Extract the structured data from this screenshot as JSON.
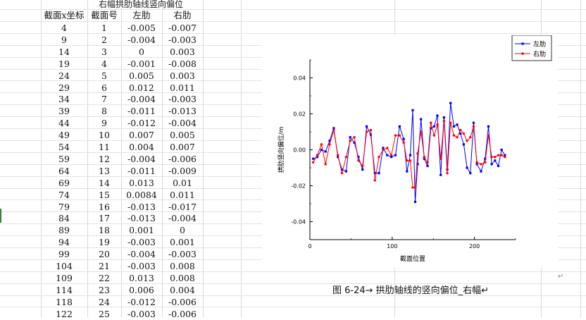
{
  "table": {
    "title": "右幅拱肋轴线竖向偏位",
    "headers": [
      "截面x坐标",
      "截面号",
      "左肋",
      "右肋"
    ],
    "rows": [
      [
        "4",
        "1",
        "-0.005",
        "-0.007"
      ],
      [
        "9",
        "2",
        "-0.004",
        "-0.003"
      ],
      [
        "14",
        "3",
        "0",
        "0.003"
      ],
      [
        "19",
        "4",
        "-0.001",
        "-0.008"
      ],
      [
        "24",
        "5",
        "0.005",
        "0.003"
      ],
      [
        "29",
        "6",
        "0.012",
        "0.011"
      ],
      [
        "34",
        "7",
        "-0.004",
        "-0.003"
      ],
      [
        "39",
        "8",
        "-0.011",
        "-0.013"
      ],
      [
        "44",
        "9",
        "-0.012",
        "-0.004"
      ],
      [
        "49",
        "10",
        "0.007",
        "0.005"
      ],
      [
        "54",
        "11",
        "0.004",
        "0.007"
      ],
      [
        "59",
        "12",
        "-0.004",
        "-0.006"
      ],
      [
        "64",
        "13",
        "-0.011",
        "-0.009"
      ],
      [
        "69",
        "14",
        "0.013",
        "0.01"
      ],
      [
        "74",
        "15",
        "0.0084",
        "0.011"
      ],
      [
        "79",
        "16",
        "-0.013",
        "-0.017"
      ],
      [
        "84",
        "17",
        "-0.013",
        "-0.004"
      ],
      [
        "89",
        "18",
        "0.001",
        "0"
      ],
      [
        "94",
        "19",
        "-0.003",
        "0.001"
      ],
      [
        "99",
        "20",
        "-0.004",
        "-0.003"
      ],
      [
        "104",
        "21",
        "-0.003",
        "0.008"
      ],
      [
        "109",
        "22",
        "0.013",
        "0.008"
      ],
      [
        "114",
        "23",
        "0.006",
        "0.004"
      ],
      [
        "118",
        "24",
        "-0.012",
        "-0.006"
      ],
      [
        "122",
        "25",
        "-0.003",
        "-0.006"
      ]
    ]
  },
  "figure": {
    "caption": "图 6-24→ 拱肋轴线的竖向偏位_右幅↵",
    "para_mark": "↵"
  },
  "chart_data": {
    "type": "line",
    "xlabel": "截面位置",
    "ylabel": "拱肋竖向偏位/m",
    "xlim": [
      0,
      250
    ],
    "ylim": [
      -0.05,
      0.05
    ],
    "xticks": [
      "0",
      "100",
      "200"
    ],
    "yticks": [
      "-0.04",
      "-0.02",
      "0.00",
      "0.02",
      "0.04"
    ],
    "ytick_values": [
      -0.04,
      -0.02,
      0.0,
      0.02,
      0.04
    ],
    "xtick_values": [
      0,
      100,
      200
    ],
    "grid": false,
    "legend_position": "top-right",
    "x": [
      4,
      9,
      14,
      19,
      24,
      29,
      34,
      39,
      44,
      49,
      54,
      59,
      64,
      69,
      74,
      79,
      84,
      89,
      94,
      99,
      104,
      109,
      114,
      118,
      122,
      125,
      128,
      131,
      135,
      139,
      143,
      147,
      151,
      155,
      159,
      163,
      167,
      171,
      175,
      179,
      183,
      187,
      191,
      195,
      199,
      203,
      208,
      213,
      217,
      221,
      225,
      229,
      233,
      237
    ],
    "series": [
      {
        "name": "左肋",
        "color": "#0000ff",
        "marker": "square",
        "values": [
          -0.005,
          -0.004,
          0,
          -0.001,
          0.005,
          0.012,
          -0.004,
          -0.011,
          -0.012,
          0.007,
          0.004,
          -0.004,
          -0.011,
          0.013,
          0.0084,
          -0.013,
          -0.013,
          0.001,
          -0.003,
          -0.004,
          -0.003,
          0.013,
          0.006,
          -0.012,
          -0.003,
          0.022,
          -0.029,
          -0.008,
          0.017,
          -0.005,
          -0.009,
          0.012,
          0.013,
          0.019,
          -0.014,
          0.018,
          -0.011,
          0.026,
          0.013,
          0.014,
          0.009,
          0.003,
          -0.01,
          -0.013,
          0.015,
          -0.008,
          -0.012,
          -0.005,
          0.013,
          -0.008,
          -0.006,
          -0.009,
          0.0,
          -0.003
        ]
      },
      {
        "name": "右肋",
        "color": "#ff0000",
        "marker": "circle",
        "values": [
          -0.007,
          -0.003,
          0.003,
          -0.008,
          0.003,
          0.011,
          -0.003,
          -0.013,
          -0.004,
          0.005,
          0.007,
          -0.006,
          -0.009,
          0.01,
          0.011,
          -0.017,
          -0.004,
          0,
          0.001,
          -0.003,
          0.008,
          0.008,
          0.004,
          -0.006,
          -0.006,
          -0.021,
          -0.021,
          -0.002,
          0.01,
          -0.004,
          -0.007,
          0.015,
          0.008,
          0.014,
          -0.005,
          0.016,
          -0.013,
          0.015,
          0.008,
          0.007,
          0.011,
          0.009,
          0.005,
          0.007,
          0.013,
          -0.007,
          -0.008,
          -0.007,
          0.008,
          -0.004,
          -0.004,
          -0.003,
          -0.003,
          -0.004
        ]
      }
    ]
  }
}
